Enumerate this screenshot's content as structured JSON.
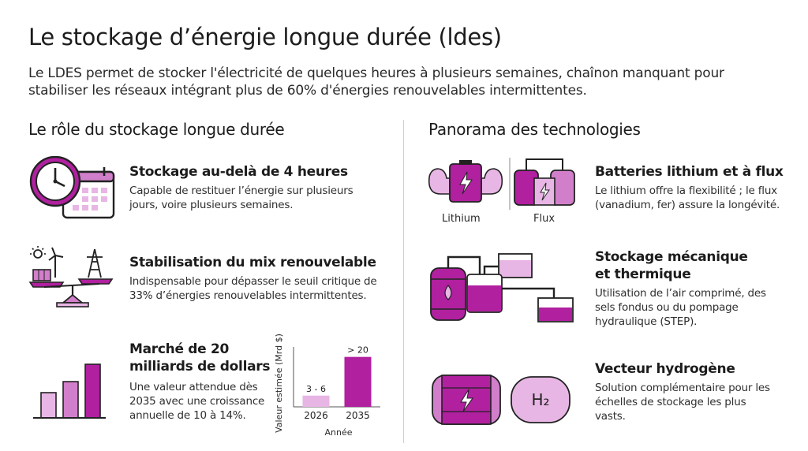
{
  "header": {
    "title": "Le stockage d’énergie longue durée (ldes)",
    "intro": "Le LDES permet de stocker l'électricité de quelques heures à plusieurs semaines, chaînon manquant pour stabiliser les réseaux intégrant plus de 60% d'énergies renouvelables intermittentes."
  },
  "left": {
    "section_title": "Le rôle du stockage longue durée",
    "items": [
      {
        "title": "Stockage au-delà de 4 heures",
        "desc": "Capable de restituer l’énergie sur plusieurs jours, voire plusieurs semaines.",
        "icon": "clock-calendar-icon"
      },
      {
        "title": "Stabilisation du mix renouvelable",
        "desc": "Indispensable pour dépasser le seuil critique de 33% d’énergies renouvelables intermittentes.",
        "icon": "balance-renewables-icon"
      },
      {
        "title": "Marché de 20 milliards de dollars",
        "desc": "Une valeur attendue dès 2035 avec une croissance annuelle de 10 à 14%.",
        "icon": "bar-growth-icon"
      }
    ]
  },
  "chart_data": {
    "type": "bar",
    "categories": [
      "2026",
      "2035"
    ],
    "values": [
      4.5,
      20
    ],
    "value_labels": [
      "3 - 6",
      "> 20"
    ],
    "xlabel": "Année",
    "ylabel": "Valeur estimée (Mrd $)",
    "ylim": [
      0,
      24
    ],
    "colors": [
      "#e7b6e4",
      "#b0209f"
    ]
  },
  "right": {
    "section_title": "Panorama des technologies",
    "items": [
      {
        "title": "Batteries lithium et à flux",
        "desc": "Le lithium offre la flexibilité ; le flux (vanadium, fer) assure la longévité.",
        "icon": "battery-flow-icon",
        "labels": [
          "Lithium",
          "Flux"
        ]
      },
      {
        "title": "Stockage mécanique et thermique",
        "desc": "Utilisation de l’air comprimé, des sels fondus ou du pompage hydraulique (STEP).",
        "icon": "tanks-pipes-icon"
      },
      {
        "title": "Vecteur hydrogène",
        "desc": "Solution complémentaire pour les échelles de stockage les plus vasts.",
        "icon": "hydrogen-tank-icon",
        "formula": "H₂"
      }
    ]
  },
  "colors": {
    "accent": "#b0209f",
    "accent_light": "#e7b6e4",
    "accent_mid": "#d27fcb"
  }
}
